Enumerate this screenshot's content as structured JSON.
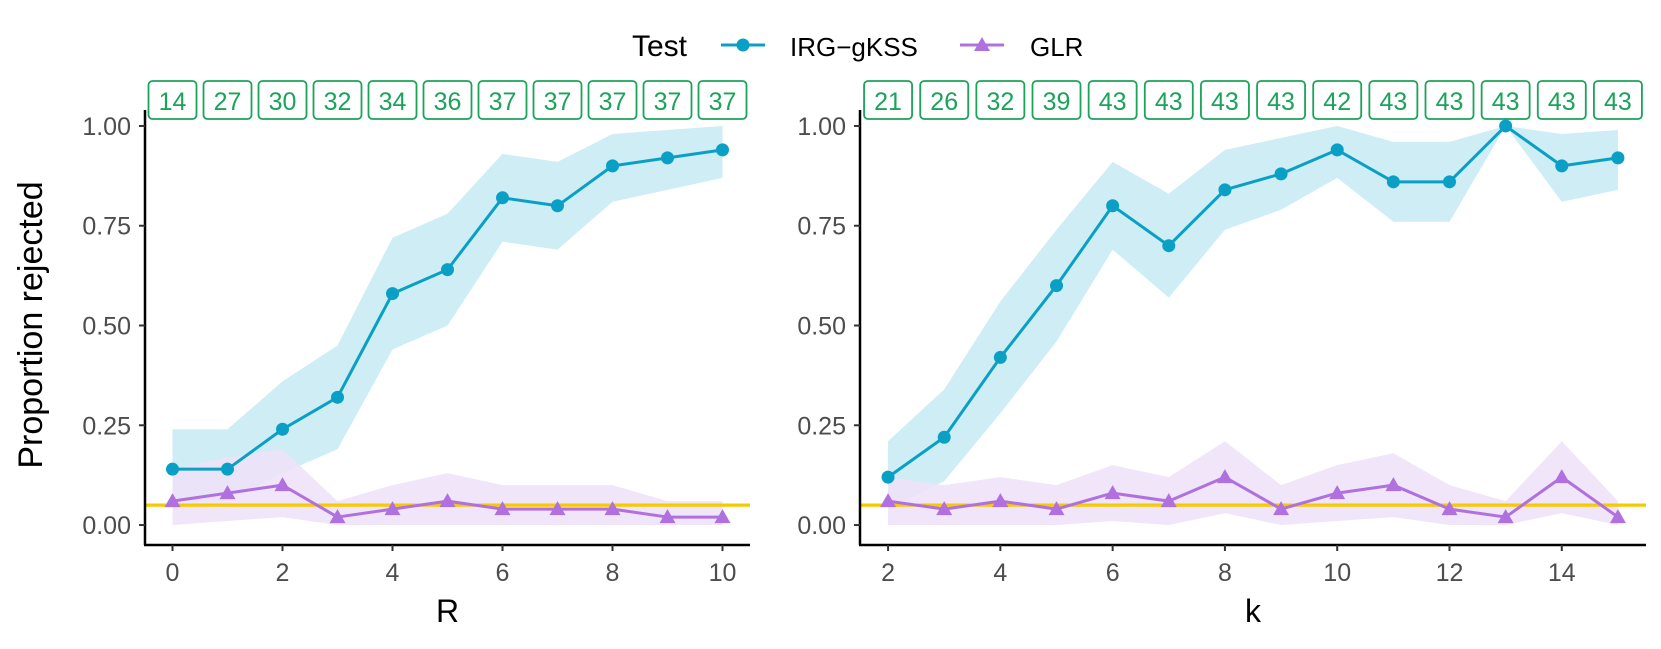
{
  "legend": {
    "title": "Test",
    "entries": [
      {
        "name": "IRG−gKSS",
        "color": "#0aa0c6",
        "marker": "circle"
      },
      {
        "name": "GLR",
        "color": "#b071df",
        "marker": "triangle"
      }
    ]
  },
  "ylabel": "Proportion rejected",
  "colors": {
    "irg": "#0aa0c6",
    "irg_band": "#c9ebf3",
    "glr": "#b071df",
    "glr_band": "#eee2f8",
    "reference_line": "#f7c900",
    "count_box": "#1ba35a"
  },
  "chart_data": [
    {
      "type": "line",
      "xlabel": "R",
      "ylabel": "Proportion rejected",
      "xlim": [
        -0.5,
        10.5
      ],
      "ylim": [
        -0.05,
        1.04
      ],
      "x_ticks": [
        0,
        2,
        4,
        6,
        8,
        10
      ],
      "y_ticks": [
        0,
        0.25,
        0.5,
        0.75,
        1.0
      ],
      "y_tick_labels": [
        "0.00",
        "0.25",
        "0.50",
        "0.75",
        "1.00"
      ],
      "reference_line": 0.05,
      "x": [
        0,
        1,
        2,
        3,
        4,
        5,
        6,
        7,
        8,
        9,
        10
      ],
      "counts": [
        "14",
        "27",
        "30",
        "32",
        "34",
        "36",
        "37",
        "37",
        "37",
        "37",
        "37"
      ],
      "series": [
        {
          "name": "IRG−gKSS",
          "values": [
            0.14,
            0.14,
            0.24,
            0.32,
            0.58,
            0.64,
            0.82,
            0.8,
            0.9,
            0.92,
            0.94
          ],
          "lower": [
            0.06,
            0.06,
            0.13,
            0.19,
            0.44,
            0.5,
            0.71,
            0.69,
            0.81,
            0.84,
            0.87
          ],
          "upper": [
            0.24,
            0.24,
            0.36,
            0.45,
            0.72,
            0.78,
            0.93,
            0.91,
            0.98,
            0.99,
            1.0
          ]
        },
        {
          "name": "GLR",
          "values": [
            0.06,
            0.08,
            0.1,
            0.02,
            0.04,
            0.06,
            0.04,
            0.04,
            0.04,
            0.02,
            0.02
          ],
          "lower": [
            0.0,
            0.01,
            0.02,
            0.0,
            0.0,
            0.0,
            0.0,
            0.0,
            0.0,
            0.0,
            0.0
          ],
          "upper": [
            0.14,
            0.17,
            0.19,
            0.06,
            0.1,
            0.13,
            0.1,
            0.1,
            0.1,
            0.06,
            0.06
          ]
        }
      ]
    },
    {
      "type": "line",
      "xlabel": "k",
      "ylabel": "Proportion rejected",
      "xlim": [
        1.5,
        15.5
      ],
      "ylim": [
        -0.05,
        1.04
      ],
      "x_ticks": [
        2,
        4,
        6,
        8,
        10,
        12,
        14
      ],
      "y_ticks": [
        0,
        0.25,
        0.5,
        0.75,
        1.0
      ],
      "y_tick_labels": [
        "0.00",
        "0.25",
        "0.50",
        "0.75",
        "1.00"
      ],
      "reference_line": 0.05,
      "x": [
        2,
        3,
        4,
        5,
        6,
        7,
        8,
        9,
        10,
        11,
        12,
        13,
        14,
        15
      ],
      "counts": [
        "21",
        "26",
        "32",
        "39",
        "43",
        "43",
        "43",
        "43",
        "42",
        "43",
        "43",
        "43",
        "43",
        "43"
      ],
      "series": [
        {
          "name": "IRG−gKSS",
          "values": [
            0.12,
            0.22,
            0.42,
            0.6,
            0.8,
            0.7,
            0.84,
            0.88,
            0.94,
            0.86,
            0.86,
            1.0,
            0.9,
            0.92
          ],
          "lower": [
            0.04,
            0.11,
            0.28,
            0.46,
            0.69,
            0.57,
            0.74,
            0.79,
            0.87,
            0.76,
            0.76,
            1.0,
            0.81,
            0.84
          ],
          "upper": [
            0.21,
            0.34,
            0.56,
            0.74,
            0.91,
            0.83,
            0.94,
            0.97,
            1.0,
            0.96,
            0.96,
            1.0,
            0.98,
            0.99
          ]
        },
        {
          "name": "GLR",
          "values": [
            0.06,
            0.04,
            0.06,
            0.04,
            0.08,
            0.06,
            0.12,
            0.04,
            0.08,
            0.1,
            0.04,
            0.02,
            0.12,
            0.02
          ],
          "lower": [
            0.0,
            0.0,
            0.0,
            0.0,
            0.01,
            0.0,
            0.03,
            0.0,
            0.01,
            0.02,
            0.0,
            0.0,
            0.03,
            0.0
          ],
          "upper": [
            0.12,
            0.1,
            0.12,
            0.1,
            0.15,
            0.12,
            0.21,
            0.1,
            0.15,
            0.18,
            0.1,
            0.06,
            0.21,
            0.06
          ]
        }
      ]
    }
  ]
}
